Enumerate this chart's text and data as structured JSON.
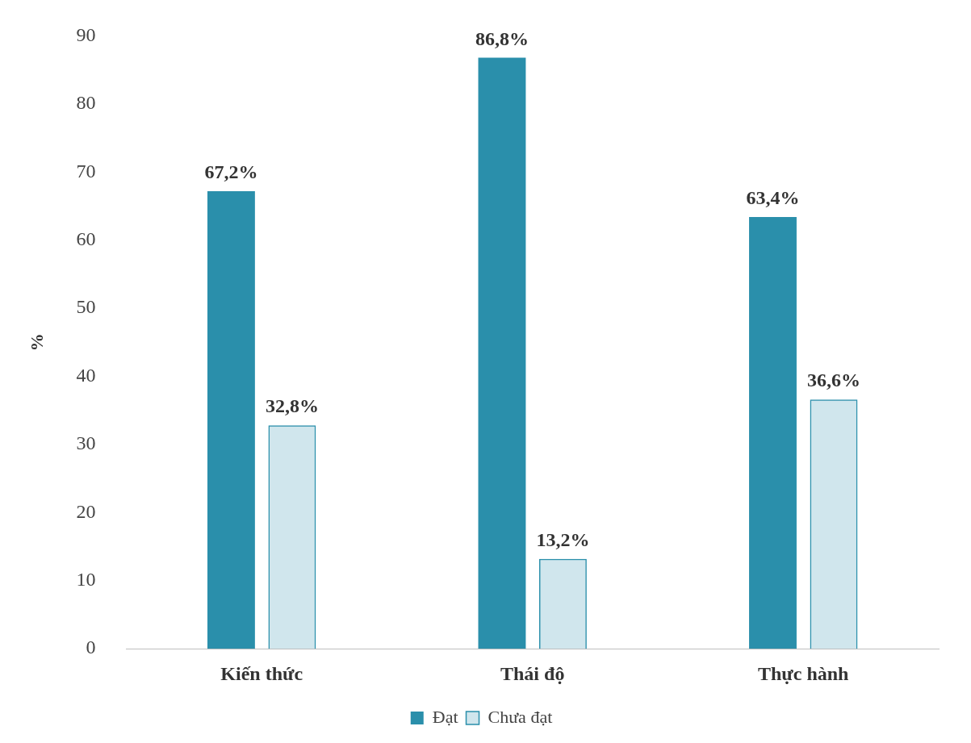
{
  "chart_data": {
    "type": "bar",
    "ylabel": "%",
    "categories": [
      "Kiến thức",
      "Thái độ",
      "Thực hành"
    ],
    "series": [
      {
        "name": "Đạt",
        "color": "#2a8fab",
        "values": [
          67.2,
          86.8,
          63.4
        ],
        "value_labels": [
          "67,2%",
          "86,8%",
          "63,4%"
        ]
      },
      {
        "name": "Chưa đạt",
        "color": "#2a8fab",
        "values": [
          32.8,
          13.2,
          36.6
        ],
        "value_labels": [
          "32,8%",
          "13,2%",
          "36,6%"
        ]
      }
    ],
    "ylim": [
      0,
      90
    ],
    "yticks": [
      0,
      10,
      20,
      30,
      40,
      50,
      60,
      70,
      80,
      90
    ],
    "grid": false,
    "legend": "bottom"
  }
}
